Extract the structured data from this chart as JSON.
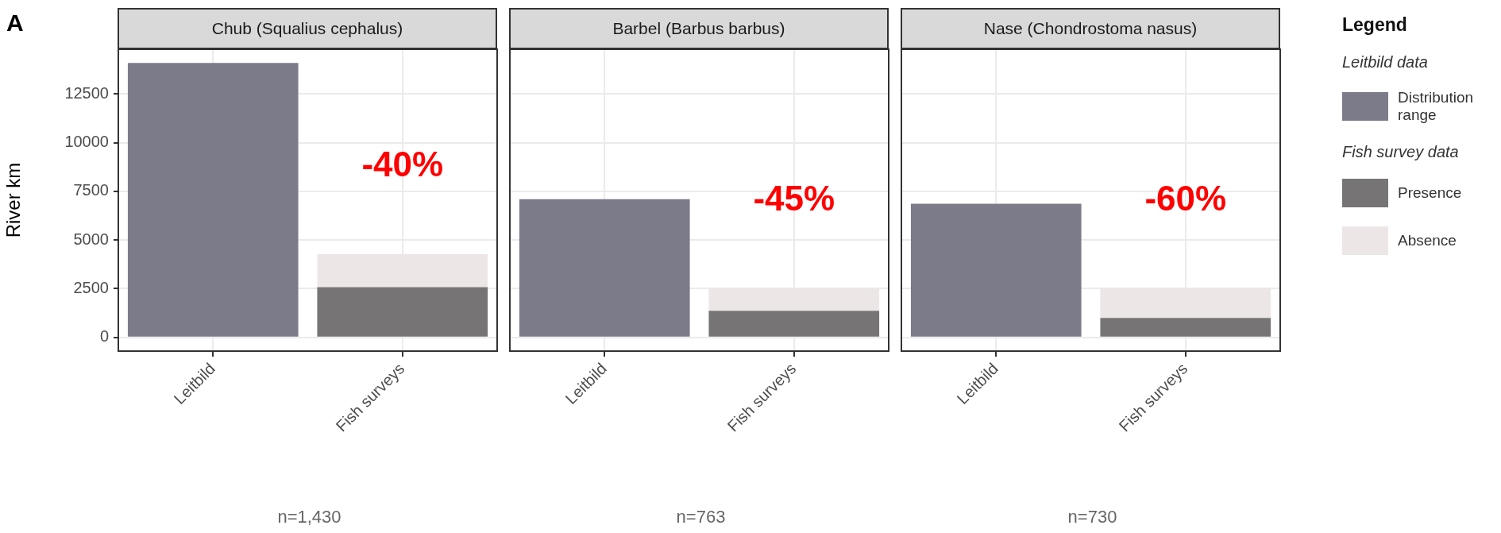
{
  "chart_data": [
    {
      "type": "bar",
      "title": "Chub (Squalius cephalus)",
      "ylabel": "River km",
      "categories": [
        "Leitbild",
        "Fish surveys"
      ],
      "stacked": true,
      "grid": true,
      "ylim": [
        -705,
        14805
      ],
      "yticks": [
        0,
        2500,
        5000,
        7500,
        10000,
        12500
      ],
      "series": [
        {
          "color": "#7c7b8a",
          "values": [
            14100,
            null
          ]
        },
        {
          "color": "#767474",
          "values": [
            null,
            2580
          ]
        },
        {
          "color": "#ede6e7",
          "values": [
            null,
            1690
          ]
        }
      ],
      "annotations": [
        "-40%",
        "n=1,430",
        "A"
      ]
    },
    {
      "type": "bar",
      "title": "Barbel (Barbus barbus)",
      "categories": [
        "Leitbild",
        "Fish surveys"
      ],
      "stacked": true,
      "grid": true,
      "ylim": [
        -705,
        14805
      ],
      "yticks": [
        0,
        2500,
        5000,
        7500,
        10000,
        12500
      ],
      "tick_labels": "x",
      "series": [
        {
          "color": "#7c7b8a",
          "values": [
            7100,
            null
          ]
        },
        {
          "color": "#767474",
          "values": [
            null,
            1370
          ]
        },
        {
          "color": "#ede6e7",
          "values": [
            null,
            1150
          ]
        }
      ],
      "annotations": [
        "-45%",
        "n=763"
      ]
    },
    {
      "type": "bar",
      "title": "Nase (Chondrostoma nasus)",
      "categories": [
        "Leitbild",
        "Fish surveys"
      ],
      "stacked": true,
      "grid": true,
      "ylim": [
        -705,
        14805
      ],
      "yticks": [
        0,
        2500,
        5000,
        7500,
        10000,
        12500
      ],
      "tick_labels": "x",
      "legend": "right",
      "legend_title": "Legend",
      "series": [
        {
          "name": "Distribution range",
          "color": "#7c7b8a",
          "values": [
            6870,
            null
          ]
        },
        {
          "name": "Presence",
          "color": "#767474",
          "values": [
            null,
            1000
          ]
        },
        {
          "name": "Absence",
          "color": "#ede6e7",
          "values": [
            null,
            1510
          ]
        }
      ],
      "annotations": [
        "-60%",
        "n=730",
        "Leitbild data",
        "Fish survey data"
      ]
    }
  ]
}
